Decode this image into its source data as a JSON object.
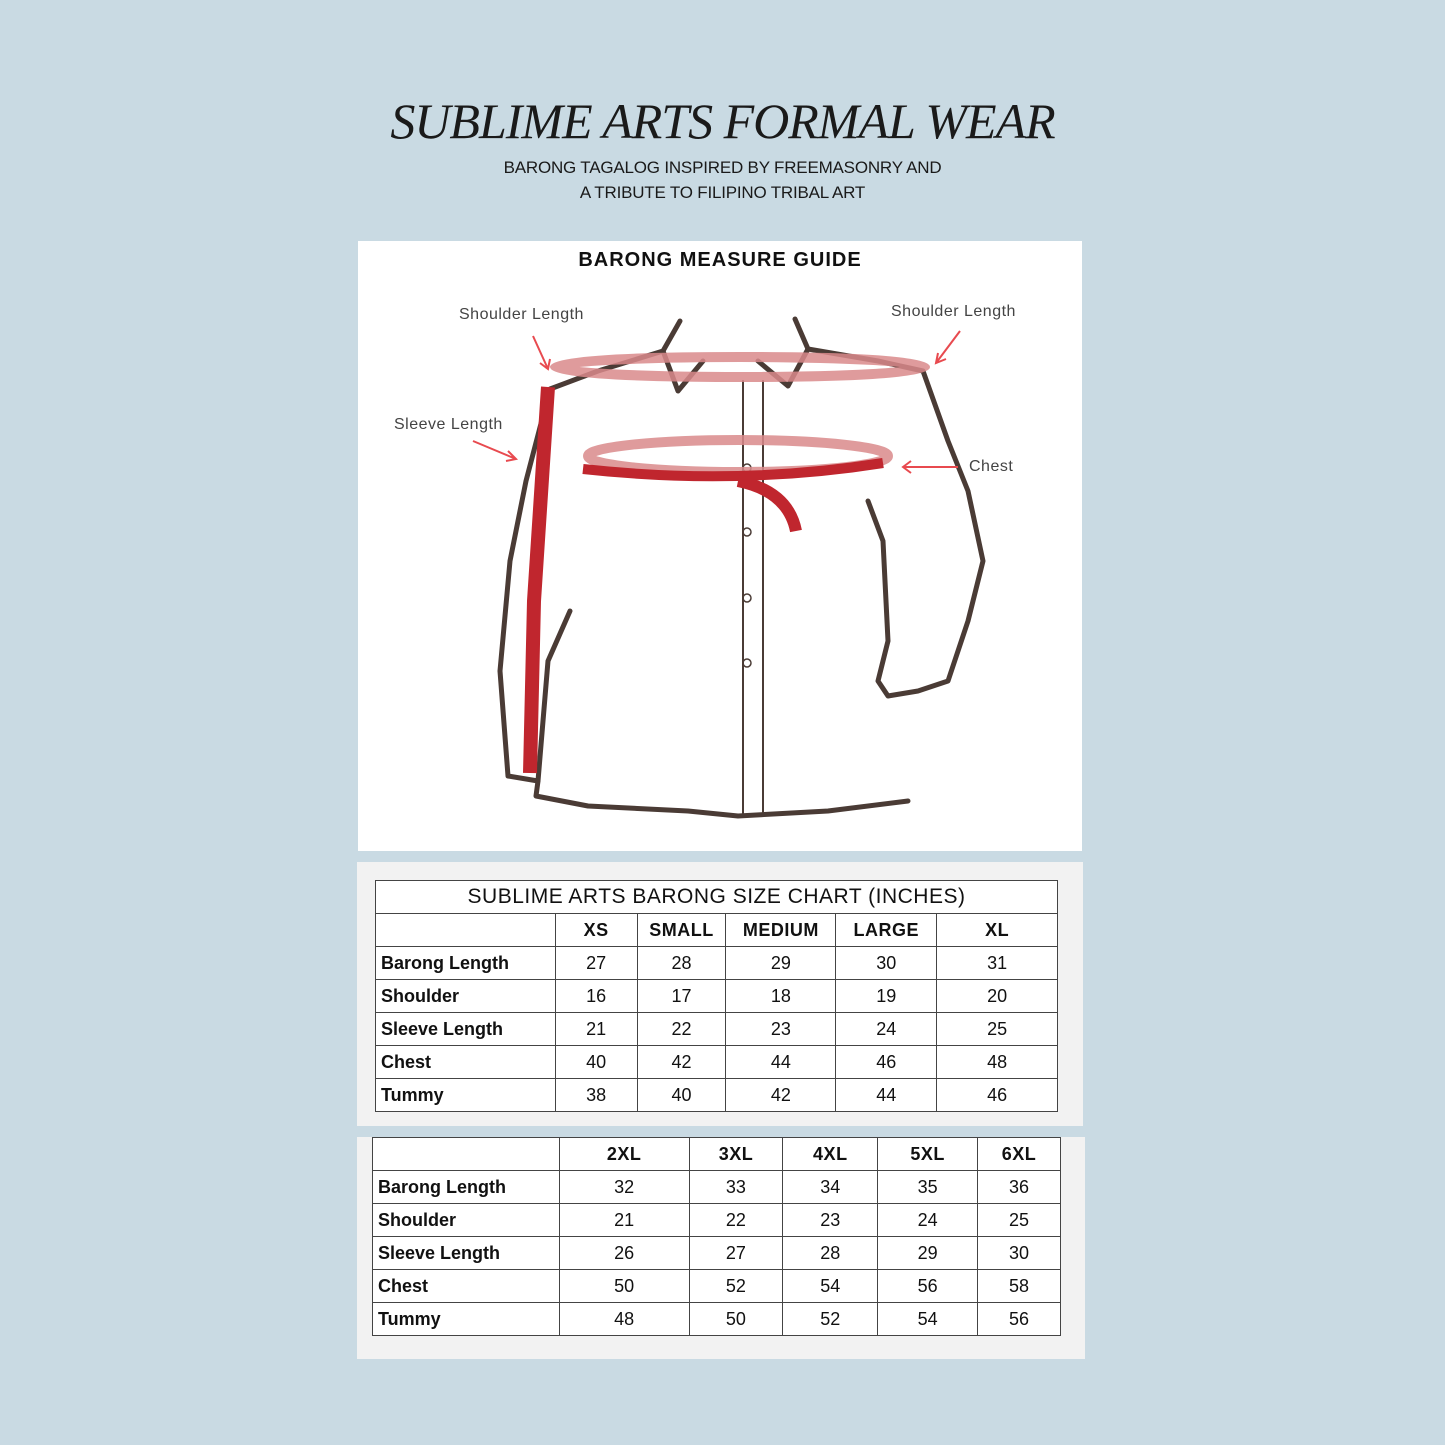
{
  "header": {
    "title": "SUBLIME ARTS FORMAL WEAR",
    "subtitle_line1": "BARONG TAGALOG INSPIRED BY FREEMASONRY AND",
    "subtitle_line2": "A TRIBUTE TO FILIPINO TRIBAL ART"
  },
  "guide": {
    "title": "BARONG MEASURE GUIDE",
    "labels": {
      "shoulder_left": "Shoulder Length",
      "shoulder_right": "Shoulder Length",
      "sleeve": "Sleeve Length",
      "chest": "Chest"
    },
    "colors": {
      "tape": "#c0262e",
      "band": "#d9898b",
      "outline": "#4a3b35"
    }
  },
  "size_chart_1": {
    "title": "SUBLIME ARTS BARONG SIZE CHART (INCHES)",
    "columns": [
      "XS",
      "SMALL",
      "MEDIUM",
      "LARGE",
      "XL"
    ],
    "rows": [
      {
        "label": "Barong Length",
        "values": [
          "27",
          "28",
          "29",
          "30",
          "31"
        ]
      },
      {
        "label": "Shoulder",
        "values": [
          "16",
          "17",
          "18",
          "19",
          "20"
        ]
      },
      {
        "label": "Sleeve Length",
        "values": [
          "21",
          "22",
          "23",
          "24",
          "25"
        ]
      },
      {
        "label": "Chest",
        "values": [
          "40",
          "42",
          "44",
          "46",
          "48"
        ]
      },
      {
        "label": "Tummy",
        "values": [
          "38",
          "40",
          "42",
          "44",
          "46"
        ]
      }
    ]
  },
  "size_chart_2": {
    "columns": [
      "2XL",
      "3XL",
      "4XL",
      "5XL",
      "6XL"
    ],
    "rows": [
      {
        "label": "Barong Length",
        "values": [
          "32",
          "33",
          "34",
          "35",
          "36"
        ]
      },
      {
        "label": "Shoulder",
        "values": [
          "21",
          "22",
          "23",
          "24",
          "25"
        ]
      },
      {
        "label": "Sleeve Length",
        "values": [
          "26",
          "27",
          "28",
          "29",
          "30"
        ]
      },
      {
        "label": "Chest",
        "values": [
          "50",
          "52",
          "54",
          "56",
          "58"
        ]
      },
      {
        "label": "Tummy",
        "values": [
          "48",
          "50",
          "52",
          "54",
          "56"
        ]
      }
    ]
  }
}
